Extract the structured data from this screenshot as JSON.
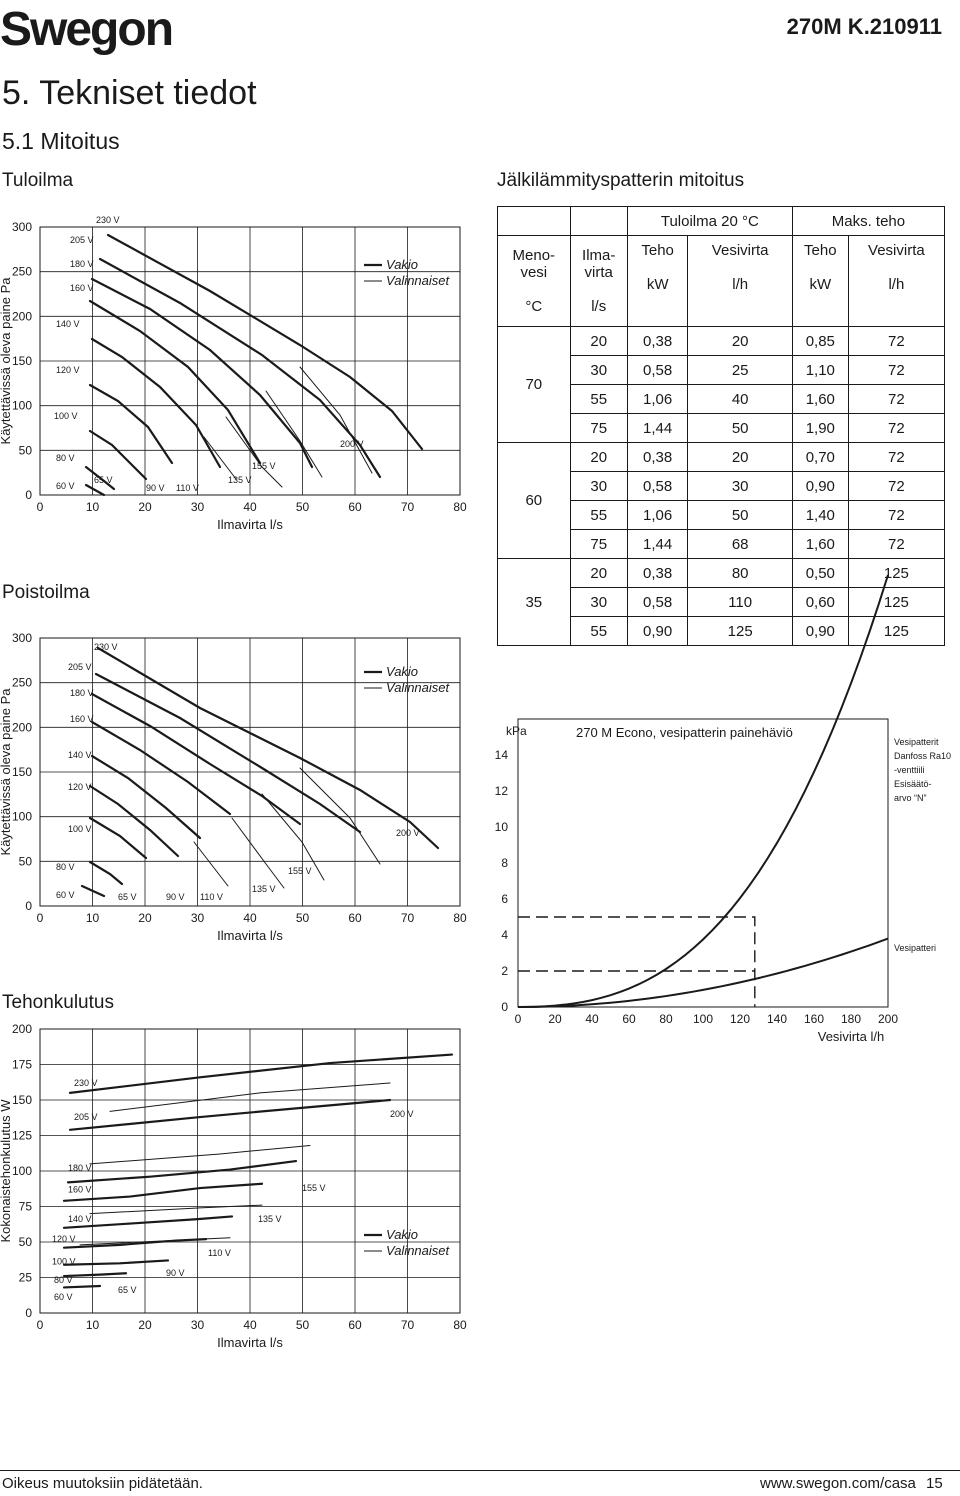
{
  "header": {
    "logo": "Swegon",
    "doc_code": "270M K.210911"
  },
  "section_title": "5. Tekniset tiedot",
  "subsection_title": "5.1 Mitoitus",
  "charts": {
    "tuloilma": {
      "title": "Tuloilma",
      "xlabel": "Ilmavirta l/s",
      "ylabel": "Käytettävissä oleva paine Pa",
      "xticks": [
        "0",
        "10",
        "20",
        "30",
        "40",
        "50",
        "60",
        "70",
        "80"
      ],
      "yticks": [
        "0",
        "50",
        "100",
        "150",
        "200",
        "250",
        "300"
      ],
      "legend": [
        "Vakio",
        "Valinnaiset"
      ],
      "curve_labels": [
        "230 V",
        "205 V",
        "180 V",
        "160 V",
        "140 V",
        "120 V",
        "100 V",
        "80 V",
        "60 V",
        "65 V",
        "90 V",
        "110 V",
        "135 V",
        "155 V",
        "200 V"
      ]
    },
    "poistoilma": {
      "title": "Poistoilma",
      "xlabel": "Ilmavirta l/s",
      "ylabel": "Käytettävissä oleva paine Pa",
      "xticks": [
        "0",
        "10",
        "20",
        "30",
        "40",
        "50",
        "60",
        "70",
        "80"
      ],
      "yticks": [
        "0",
        "50",
        "100",
        "150",
        "200",
        "250",
        "300"
      ],
      "legend": [
        "Vakio",
        "Valinnaiset"
      ],
      "curve_labels": [
        "230 V",
        "205 V",
        "180 V",
        "160 V",
        "140 V",
        "120 V",
        "100 V",
        "80 V",
        "60 V",
        "65 V",
        "90 V",
        "110 V",
        "135 V",
        "155 V",
        "200 V"
      ]
    },
    "tehonkulutus": {
      "title": "Tehonkulutus",
      "xlabel": "Ilmavirta l/s",
      "ylabel": "Kokonaistehonkulutus W",
      "xticks": [
        "0",
        "10",
        "20",
        "30",
        "40",
        "50",
        "60",
        "70",
        "80"
      ],
      "yticks": [
        "0",
        "25",
        "50",
        "75",
        "100",
        "125",
        "150",
        "175",
        "200"
      ],
      "legend": [
        "Vakio",
        "Valinnaiset"
      ],
      "curve_labels": [
        "230 V",
        "205 V",
        "200 V",
        "180 V",
        "160 V",
        "155 V",
        "140 V",
        "135 V",
        "120 V",
        "110 V",
        "100 V",
        "90 V",
        "80 V",
        "65 V",
        "60 V"
      ]
    },
    "painehavio": {
      "title": "270 M Econo, vesipatterin painehäviö",
      "ylabel_unit": "kPa",
      "xlabel": "Vesivirta l/h",
      "xticks": [
        "0",
        "20",
        "40",
        "60",
        "80",
        "100",
        "120",
        "140",
        "160",
        "180",
        "200"
      ],
      "yticks": [
        "0",
        "2",
        "4",
        "6",
        "8",
        "10",
        "12",
        "14"
      ],
      "label_valve": [
        "Vesipatterit",
        "Danfoss Ra10",
        "-venttiili",
        "Esisäätö-",
        "arvo “N”"
      ],
      "label_coil": "Vesipatteri"
    }
  },
  "coil_table": {
    "title": "Jälkilämmityspatterin mitoitus",
    "group_tuloilma": "Tuloilma 20 °C",
    "group_maks": "Maks. teho",
    "col_menovesi": [
      "Meno-",
      "vesi",
      "°C"
    ],
    "col_ilmavirta": [
      "Ilma-",
      "virta",
      "l/s"
    ],
    "col_teho": "Teho",
    "col_vesivirta": "Vesivirta",
    "unit_kw": "kW",
    "unit_lh": "l/h",
    "groups": [
      {
        "temp": "70",
        "rows": [
          [
            "20",
            "0,38",
            "20",
            "0,85",
            "72"
          ],
          [
            "30",
            "0,58",
            "25",
            "1,10",
            "72"
          ],
          [
            "55",
            "1,06",
            "40",
            "1,60",
            "72"
          ],
          [
            "75",
            "1,44",
            "50",
            "1,90",
            "72"
          ]
        ]
      },
      {
        "temp": "60",
        "rows": [
          [
            "20",
            "0,38",
            "20",
            "0,70",
            "72"
          ],
          [
            "30",
            "0,58",
            "30",
            "0,90",
            "72"
          ],
          [
            "55",
            "1,06",
            "50",
            "1,40",
            "72"
          ],
          [
            "75",
            "1,44",
            "68",
            "1,60",
            "72"
          ]
        ]
      },
      {
        "temp": "35",
        "rows": [
          [
            "20",
            "0,38",
            "80",
            "0,50",
            "125"
          ],
          [
            "30",
            "0,58",
            "110",
            "0,60",
            "125"
          ],
          [
            "55",
            "0,90",
            "125",
            "0,90",
            "125"
          ]
        ]
      }
    ]
  },
  "footer": {
    "left": "Oikeus muutoksiin pidätetään.",
    "url": "www.swegon.com/casa",
    "page": "15"
  }
}
